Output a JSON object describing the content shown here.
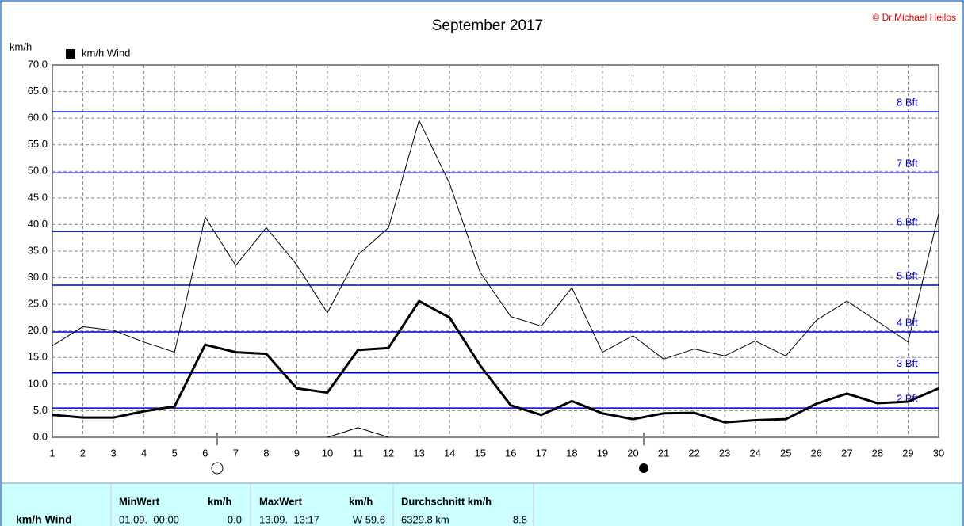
{
  "chart_data": {
    "type": "line",
    "title": "September 2017",
    "credit": "© Dr.Michael Heilos",
    "y_label": "km/h",
    "x": [
      1,
      2,
      3,
      4,
      5,
      6,
      7,
      8,
      9,
      10,
      11,
      12,
      13,
      14,
      15,
      16,
      17,
      18,
      19,
      20,
      21,
      22,
      23,
      24,
      25,
      26,
      27,
      28,
      29,
      30
    ],
    "xlim": [
      1,
      30
    ],
    "xticks": [
      1,
      2,
      3,
      4,
      5,
      6,
      7,
      8,
      9,
      10,
      11,
      12,
      13,
      14,
      15,
      16,
      17,
      18,
      19,
      20,
      21,
      22,
      23,
      24,
      25,
      26,
      27,
      28,
      29,
      30
    ],
    "ylim": [
      0,
      70
    ],
    "yticks": [
      {
        "value": 0,
        "label": "0.0"
      },
      {
        "value": 5,
        "label": "5.0"
      },
      {
        "value": 10,
        "label": "10.0"
      },
      {
        "value": 15,
        "label": "15.0"
      },
      {
        "value": 20,
        "label": "20.0"
      },
      {
        "value": 25,
        "label": "25.0"
      },
      {
        "value": 30,
        "label": "30.0"
      },
      {
        "value": 35,
        "label": "35.0"
      },
      {
        "value": 40,
        "label": "40.0"
      },
      {
        "value": 45,
        "label": "45.0"
      },
      {
        "value": 50,
        "label": "50.0"
      },
      {
        "value": 55,
        "label": "55.0"
      },
      {
        "value": 60,
        "label": "60.0"
      },
      {
        "value": 65,
        "label": "65.0"
      },
      {
        "value": 70,
        "label": "70.0"
      }
    ],
    "grid": true,
    "series": [
      {
        "name": "km/h Wind",
        "color": "#000000",
        "line_width": 3,
        "values": [
          4.2,
          3.7,
          3.7,
          4.9,
          5.8,
          17.4,
          16.0,
          15.7,
          9.2,
          8.4,
          16.4,
          16.8,
          25.6,
          22.5,
          13.5,
          6.0,
          4.2,
          6.8,
          4.5,
          3.4,
          4.5,
          4.6,
          2.8,
          3.2,
          3.4,
          6.3,
          8.2,
          6.4,
          6.7,
          9.2
        ]
      },
      {
        "color": "#000000",
        "line_width": 1,
        "values": [
          17.2,
          20.8,
          20.1,
          17.9,
          16.0,
          41.4,
          32.3,
          39.4,
          32.4,
          23.4,
          34.3,
          39.4,
          59.6,
          47.7,
          31.0,
          22.7,
          20.9,
          28.1,
          16.0,
          19.1,
          14.7,
          16.6,
          15.3,
          18.1,
          15.3,
          22.0,
          25.6,
          21.8,
          17.9,
          42.0
        ]
      },
      {
        "color": "#000000",
        "line_width": 1,
        "values": [
          null,
          null,
          null,
          null,
          null,
          null,
          null,
          null,
          null,
          0,
          1.8,
          0,
          null,
          null,
          null,
          null,
          null,
          null,
          null,
          null,
          null,
          null,
          null,
          null,
          null,
          null,
          null,
          null,
          null,
          null
        ]
      }
    ],
    "reference_lines": {
      "color": "#0000cc",
      "items": [
        {
          "label": "8 Bft",
          "value": 61.2
        },
        {
          "label": "7 Bft",
          "value": 49.7
        },
        {
          "label": "6 Bft",
          "value": 38.7
        },
        {
          "label": "5 Bft",
          "value": 28.6
        },
        {
          "label": "4 Bft",
          "value": 19.8
        },
        {
          "label": "3 Bft",
          "value": 12.1
        },
        {
          "label": "2 Bft",
          "value": 5.5
        }
      ]
    }
  },
  "table": {
    "row_label": "km/h Wind",
    "headers": [
      "MinWert",
      "km/h",
      "MaxWert",
      "km/h",
      "Durchschnitt km/h"
    ],
    "cells": [
      "01.09.  00:00",
      "0.0",
      "13.09.  13:17",
      "W 59.6",
      "6329.8 km",
      "8.8"
    ]
  }
}
